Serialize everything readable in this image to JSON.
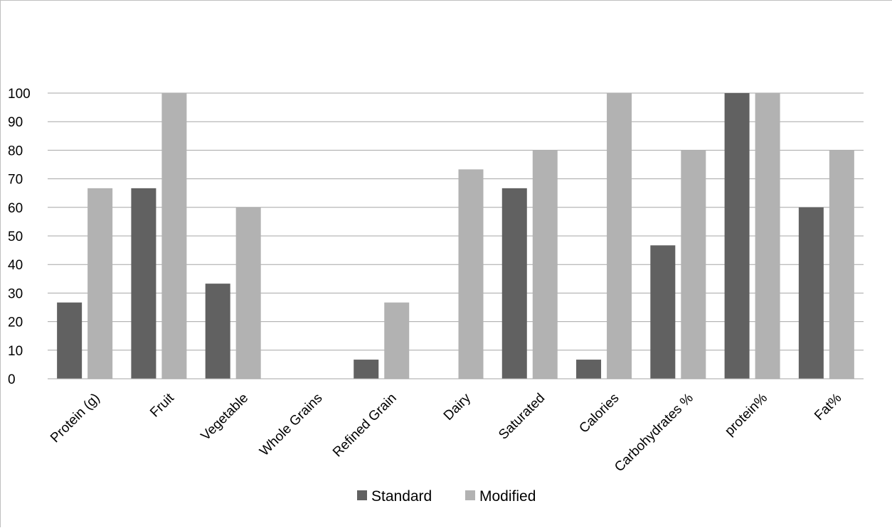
{
  "chart_data": {
    "type": "bar",
    "title": "",
    "xlabel": "",
    "ylabel": "",
    "categories": [
      "Protein (g)",
      "Fruit",
      "Vegetable",
      "Whole Grains",
      "Refined Grain",
      "Dairy",
      "Saturated",
      "Calories",
      "Carbohydrates %",
      "protein%",
      "Fat%"
    ],
    "series": [
      {
        "name": "Standard",
        "color": "#616161",
        "values": [
          26.7,
          66.7,
          33.3,
          0,
          6.7,
          0,
          66.7,
          6.7,
          46.7,
          100,
          60
        ]
      },
      {
        "name": "Modified",
        "color": "#b2b2b2",
        "values": [
          66.7,
          100,
          60,
          0,
          26.7,
          73.3,
          80,
          100,
          80,
          100,
          80
        ]
      }
    ],
    "ylim": [
      0,
      100
    ],
    "yticks": [
      0,
      10,
      20,
      30,
      40,
      50,
      60,
      70,
      80,
      90,
      100
    ],
    "grid": true,
    "legend": "bottom"
  }
}
